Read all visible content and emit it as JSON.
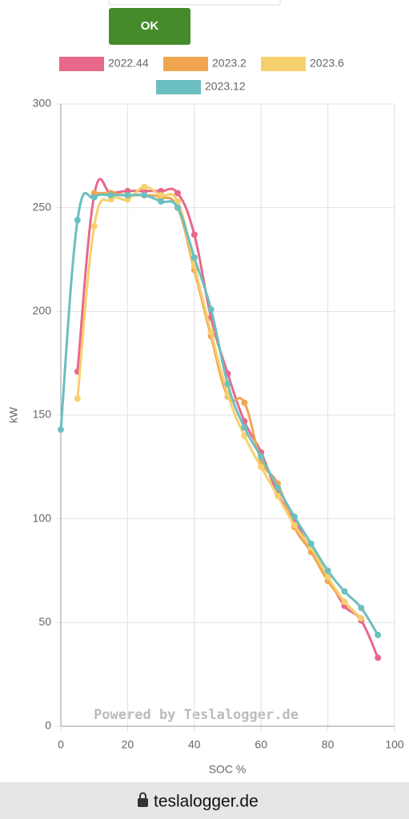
{
  "ui": {
    "button": "OK",
    "watermark": "Powered by Teslalogger.de",
    "url": "teslalogger.de"
  },
  "chart_data": {
    "type": "line",
    "x_label": "SOC %",
    "y_label": "kW",
    "x": [
      0,
      5,
      10,
      15,
      20,
      25,
      30,
      35,
      40,
      45,
      50,
      55,
      60,
      65,
      70,
      75,
      80,
      85,
      90,
      95
    ],
    "series": [
      {
        "name": "2022.44",
        "color": "#e8688a",
        "values": [
          null,
          171,
          256,
          257,
          258,
          258,
          258,
          257,
          237,
          197,
          170,
          147,
          132,
          112,
          99,
          85,
          72,
          58,
          51,
          33
        ]
      },
      {
        "name": "2023.2",
        "color": "#f0a650",
        "values": [
          null,
          null,
          257,
          257,
          256,
          256,
          255,
          250,
          220,
          188,
          159,
          156,
          128,
          117,
          96,
          84,
          70,
          60,
          52,
          null
        ]
      },
      {
        "name": "2023.6",
        "color": "#f7d06e",
        "values": [
          null,
          158,
          241,
          254,
          254,
          260,
          256,
          253,
          222,
          190,
          160,
          140,
          125,
          111,
          97,
          86,
          72,
          60,
          52,
          null
        ]
      },
      {
        "name": "2023.12",
        "color": "#6bbfc0",
        "values": [
          143,
          244,
          255,
          256,
          256,
          256,
          253,
          250,
          226,
          201,
          165,
          144,
          130,
          115,
          101,
          88,
          75,
          65,
          57,
          44
        ]
      }
    ],
    "xlim": [
      0,
      100
    ],
    "xticks": [
      0,
      20,
      40,
      60,
      80,
      100
    ],
    "ylim": [
      0,
      300
    ],
    "yticks": [
      0,
      50,
      100,
      150,
      200,
      250,
      300
    ],
    "grid": true
  }
}
